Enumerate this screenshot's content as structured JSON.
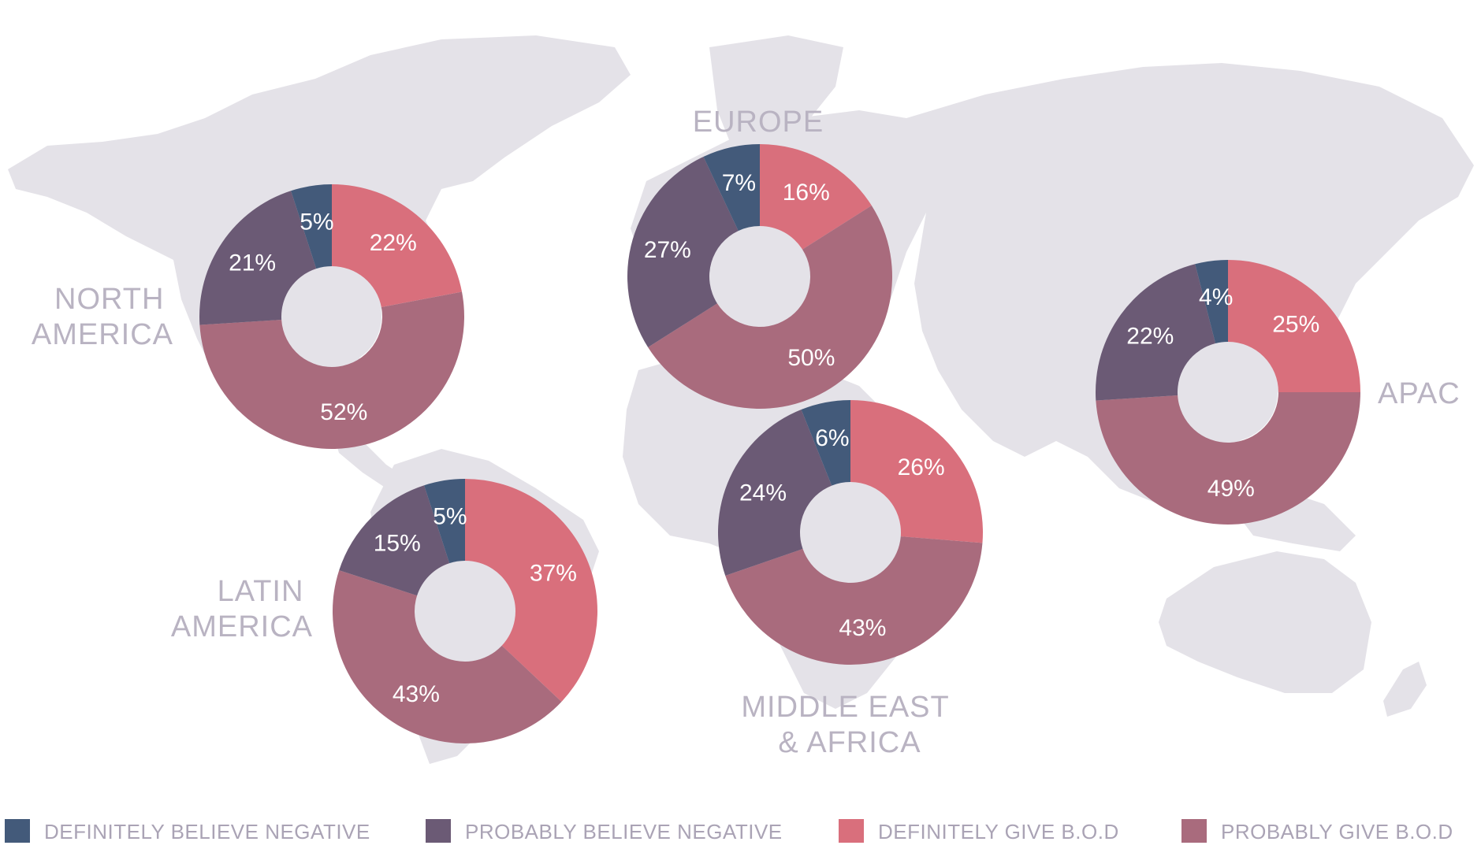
{
  "chart_data": {
    "type": "pie",
    "variant": "donut",
    "units": "%",
    "categories": [
      "DEFINITELY BELIEVE NEGATIVE",
      "PROBABLY BELIEVE NEGATIVE",
      "DEFINITELY GIVE B.O.D",
      "PROBABLY GIVE B.O.D"
    ],
    "colors": [
      "#435a7a",
      "#6b5a75",
      "#d96f7c",
      "#a96b7d"
    ],
    "regions": [
      {
        "name": "NORTH AMERICA",
        "label_lines": [
          "NORTH",
          "AMERICA"
        ],
        "values": {
          "DEFINITELY BELIEVE NEGATIVE": 5,
          "PROBABLY BELIEVE NEGATIVE": 21,
          "DEFINITELY GIVE B.O.D": 22,
          "PROBABLY GIVE B.O.D": 52
        }
      },
      {
        "name": "EUROPE",
        "label_lines": [
          "EUROPE"
        ],
        "values": {
          "DEFINITELY BELIEVE NEGATIVE": 7,
          "PROBABLY BELIEVE NEGATIVE": 27,
          "DEFINITELY GIVE B.O.D": 16,
          "PROBABLY GIVE B.O.D": 50
        }
      },
      {
        "name": "APAC",
        "label_lines": [
          "APAC"
        ],
        "values": {
          "DEFINITELY BELIEVE NEGATIVE": 4,
          "PROBABLY BELIEVE NEGATIVE": 22,
          "DEFINITELY GIVE B.O.D": 25,
          "PROBABLY GIVE B.O.D": 49
        }
      },
      {
        "name": "LATIN AMERICA",
        "label_lines": [
          "LATIN",
          "AMERICA"
        ],
        "values": {
          "DEFINITELY BELIEVE NEGATIVE": 5,
          "PROBABLY BELIEVE NEGATIVE": 15,
          "DEFINITELY GIVE B.O.D": 37,
          "PROBABLY GIVE B.O.D": 43
        }
      },
      {
        "name": "MIDDLE EAST & AFRICA",
        "label_lines": [
          "MIDDLE EAST",
          "& AFRICA"
        ],
        "values": {
          "DEFINITELY BELIEVE NEGATIVE": 6,
          "PROBABLY BELIEVE NEGATIVE": 24,
          "DEFINITELY GIVE B.O.D": 26,
          "PROBABLY GIVE B.O.D": 43
        }
      }
    ],
    "legend": {
      "placement": "bottom",
      "entries": [
        "DEFINITELY BELIEVE NEGATIVE",
        "PROBABLY BELIEVE NEGATIVE",
        "DEFINITELY GIVE B.O.D",
        "PROBABLY GIVE B.O.D"
      ]
    },
    "background": "world-map"
  }
}
